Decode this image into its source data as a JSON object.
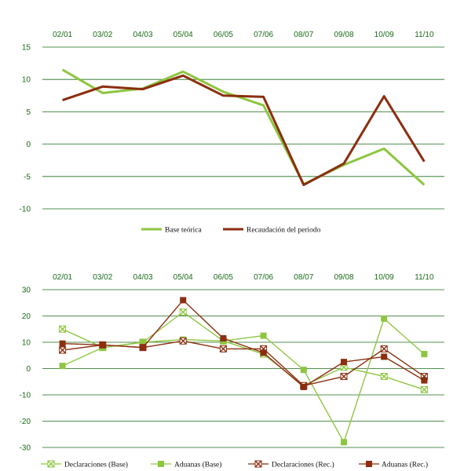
{
  "chart_data": [
    {
      "type": "line",
      "categories": [
        "02/01",
        "03/02",
        "04/03",
        "05/04",
        "06/05",
        "07/06",
        "08/07",
        "09/08",
        "10/09",
        "11/10"
      ],
      "ylim": [
        -10,
        15
      ],
      "yticks": [
        15,
        10,
        5,
        0,
        -5,
        -10
      ],
      "grid": true,
      "legend_position": "bottom",
      "series": [
        {
          "name": "Base teórica",
          "color": "#8dc63f",
          "values": [
            11.5,
            7.9,
            8.6,
            11.2,
            8.1,
            6.0,
            -6.2,
            -3.2,
            -0.7,
            -6.3
          ]
        },
        {
          "name": "Recaudación del periodo",
          "color": "#8b2e0f",
          "values": [
            6.8,
            8.9,
            8.5,
            10.6,
            7.5,
            7.3,
            -6.3,
            -3.0,
            7.4,
            -2.7
          ]
        }
      ]
    },
    {
      "type": "line",
      "categories": [
        "02/01",
        "03/02",
        "04/03",
        "05/04",
        "06/05",
        "07/06",
        "08/07",
        "09/08",
        "10/09",
        "11/10"
      ],
      "ylim": [
        -30,
        30
      ],
      "yticks": [
        30,
        20,
        10,
        0,
        -10,
        -20,
        -30
      ],
      "grid": true,
      "legend_position": "bottom",
      "series": [
        {
          "name": "Declaraciones (Base)",
          "color": "#8dc63f",
          "marker": "triangle-open",
          "values": [
            15.0,
            8.0,
            10.0,
            21.5,
            10.5,
            5.5,
            -6.5,
            0.5,
            -3.0,
            -8.0
          ]
        },
        {
          "name": "Aduanas (Base)",
          "color": "#8dc63f",
          "marker": "square",
          "values": [
            1.0,
            8.0,
            10.0,
            11.0,
            10.5,
            12.5,
            -0.5,
            -28.0,
            19.0,
            5.5
          ]
        },
        {
          "name": "Declaraciones (Rec.)",
          "color": "#8b2e0f",
          "marker": "x-box",
          "values": [
            7.0,
            9.0,
            8.0,
            10.5,
            7.5,
            7.5,
            -6.5,
            -3.0,
            7.5,
            -3.0
          ]
        },
        {
          "name": "Aduanas (Rec.)",
          "color": "#8b2e0f",
          "marker": "square",
          "values": [
            9.5,
            9.0,
            8.0,
            26.0,
            11.5,
            6.0,
            -7.0,
            2.5,
            4.5,
            -4.5
          ]
        }
      ]
    }
  ],
  "style": {
    "grid_color": "#1a6b1a",
    "tick_color": "#1a6b1a"
  }
}
